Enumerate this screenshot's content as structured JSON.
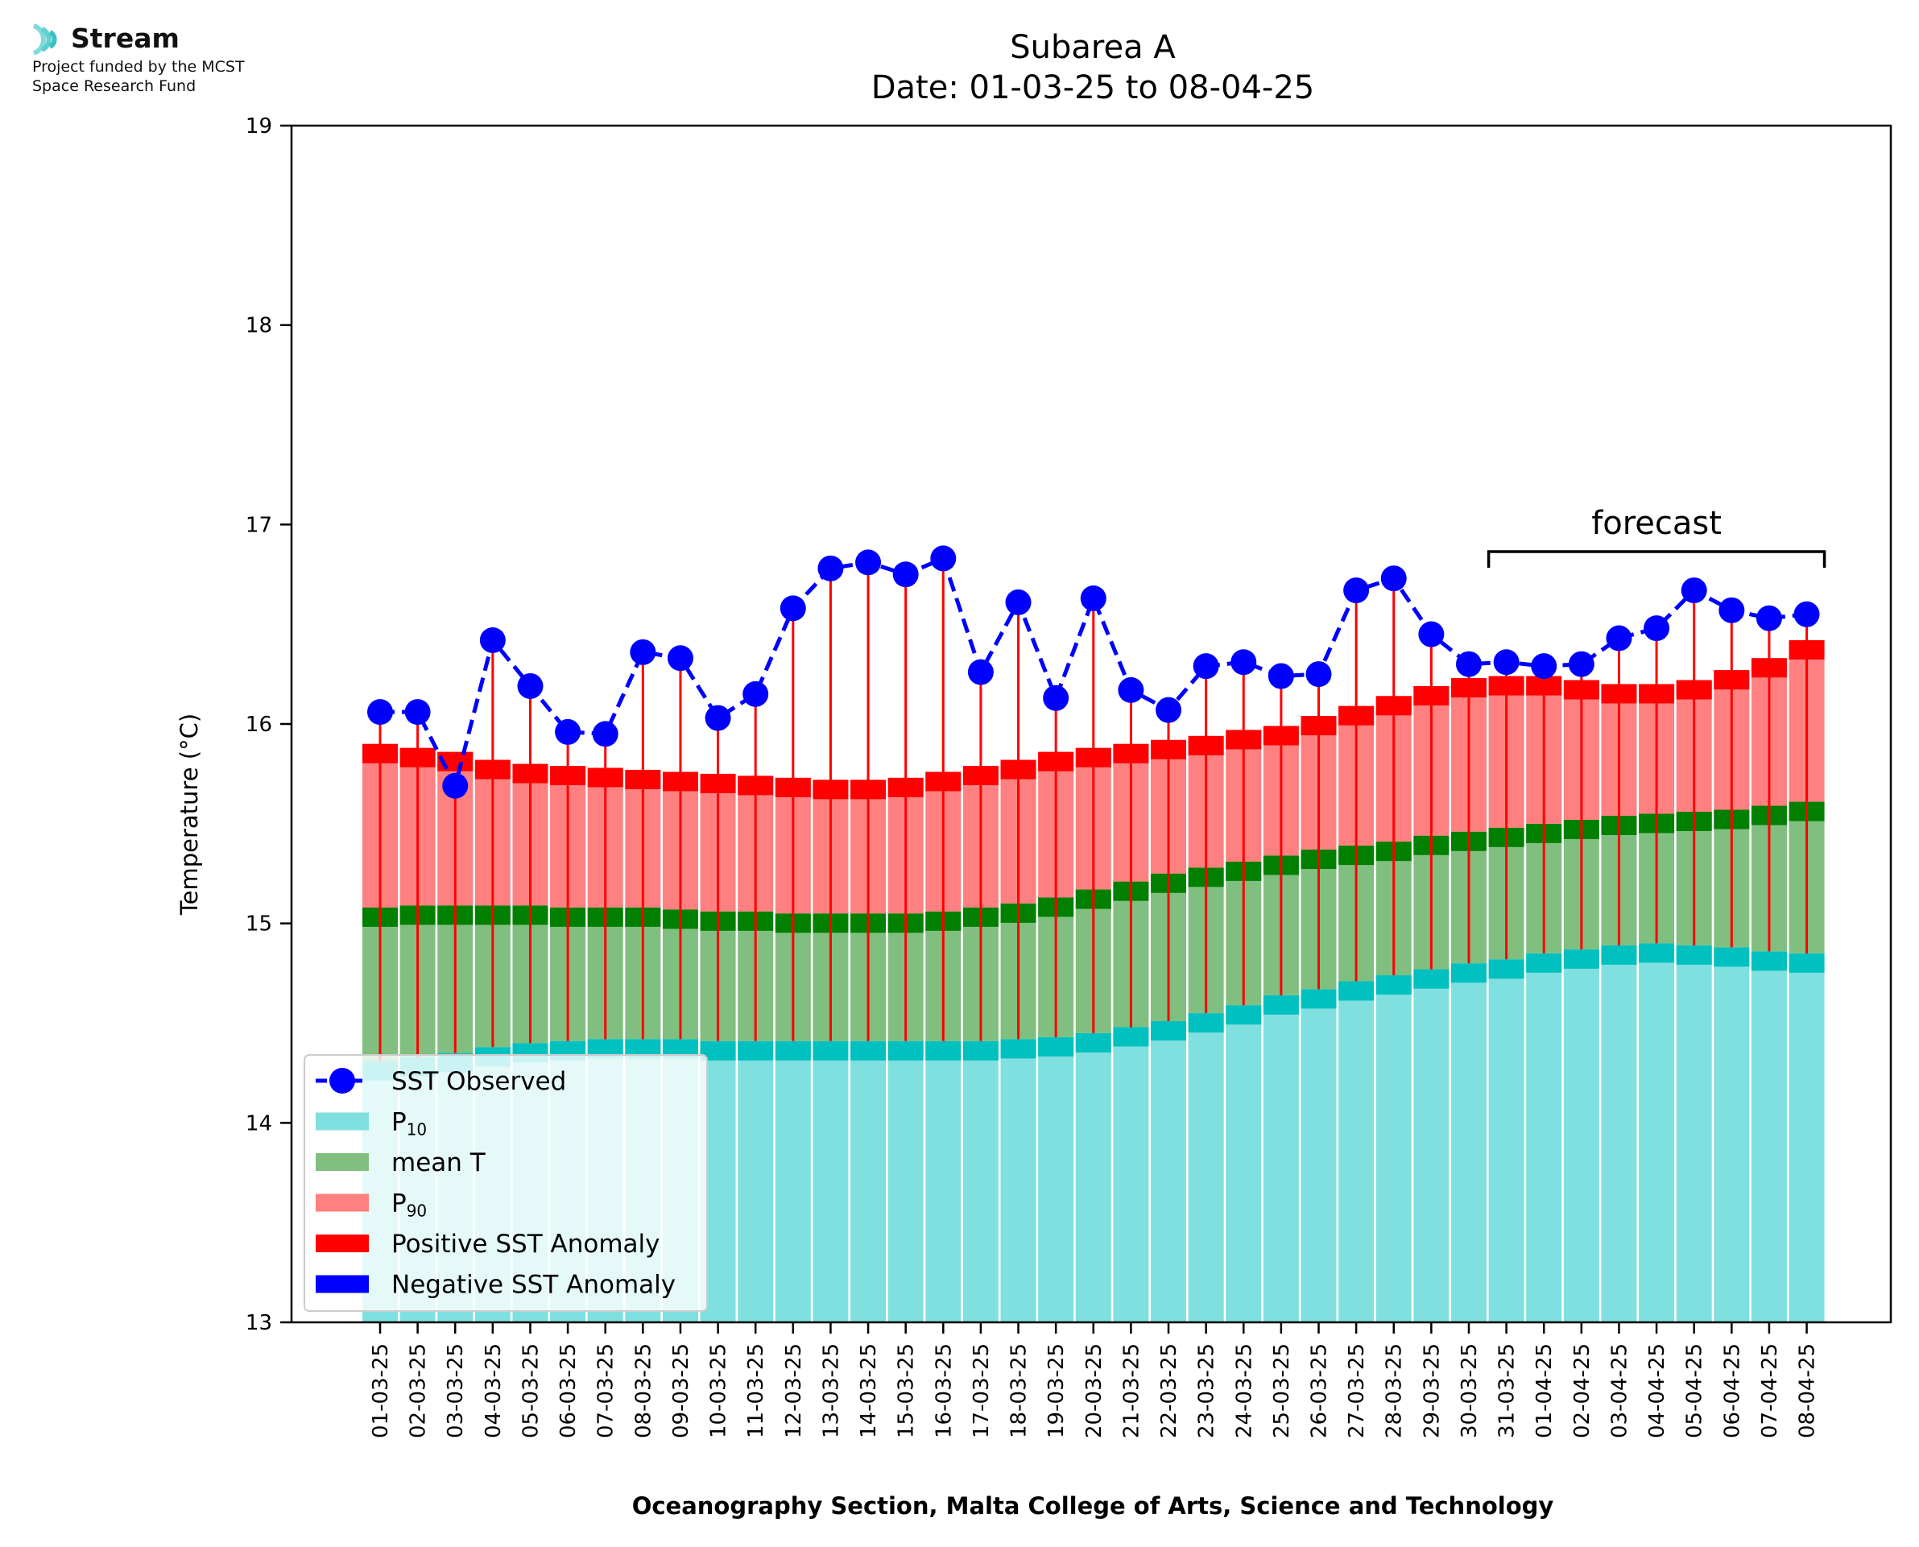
{
  "logo": {
    "name": "Stream",
    "line1": "Project funded by the MCST",
    "line2": "Space Research Fund"
  },
  "chart_data": {
    "type": "bar",
    "title": "Subarea A",
    "subtitle": "Date: 01-03-25 to 08-04-25",
    "ylabel": "Temperature (°C)",
    "xlabel": "Oceanography Section, Malta College of Arts, Science and Technology",
    "ylim": [
      13,
      19
    ],
    "yticks": [
      13,
      14,
      15,
      16,
      17,
      18,
      19
    ],
    "grid": false,
    "legend_position": "lower-left",
    "annotation": {
      "text": "forecast",
      "from": "31-03-25",
      "to": "08-04-25"
    },
    "colors": {
      "observed": "#0000ff",
      "p10": "#80dfdf",
      "p10_edge": "#00c0c0",
      "mean": "#80bf80",
      "mean_edge": "#007f00",
      "p90": "#ff8080",
      "p90_edge": "#ff0000",
      "positive_anomaly": "#ff0000",
      "negative_anomaly": "#0000ff"
    },
    "legend": [
      {
        "key": "observed",
        "label": "SST Observed"
      },
      {
        "key": "p10",
        "label": "P",
        "sub": "10"
      },
      {
        "key": "mean",
        "label": "mean T"
      },
      {
        "key": "p90",
        "label": "P",
        "sub": "90"
      },
      {
        "key": "positive_anomaly",
        "label": "Positive SST Anomaly"
      },
      {
        "key": "negative_anomaly",
        "label": "Negative SST Anomaly"
      }
    ],
    "categories": [
      "01-03-25",
      "02-03-25",
      "03-03-25",
      "04-03-25",
      "05-03-25",
      "06-03-25",
      "07-03-25",
      "08-03-25",
      "09-03-25",
      "10-03-25",
      "11-03-25",
      "12-03-25",
      "13-03-25",
      "14-03-25",
      "15-03-25",
      "16-03-25",
      "17-03-25",
      "18-03-25",
      "19-03-25",
      "20-03-25",
      "21-03-25",
      "22-03-25",
      "23-03-25",
      "24-03-25",
      "25-03-25",
      "26-03-25",
      "27-03-25",
      "28-03-25",
      "29-03-25",
      "30-03-25",
      "31-03-25",
      "01-04-25",
      "02-04-25",
      "03-04-25",
      "04-04-25",
      "05-04-25",
      "06-04-25",
      "07-04-25",
      "08-04-25"
    ],
    "series": [
      {
        "name": "SST Observed",
        "values": [
          16.06,
          16.06,
          15.69,
          16.42,
          16.19,
          15.96,
          15.95,
          16.36,
          16.33,
          16.03,
          16.15,
          16.58,
          16.78,
          16.81,
          16.75,
          16.83,
          16.26,
          16.61,
          16.13,
          16.63,
          16.17,
          16.07,
          16.29,
          16.31,
          16.24,
          16.25,
          16.67,
          16.73,
          16.45,
          16.3,
          16.31,
          16.29,
          16.3,
          16.43,
          16.48,
          16.67,
          16.57,
          16.53,
          16.55
        ]
      },
      {
        "name": "P10",
        "values": [
          14.31,
          14.33,
          14.35,
          14.38,
          14.4,
          14.41,
          14.42,
          14.42,
          14.42,
          14.41,
          14.41,
          14.41,
          14.41,
          14.41,
          14.41,
          14.41,
          14.41,
          14.42,
          14.43,
          14.45,
          14.48,
          14.51,
          14.55,
          14.59,
          14.64,
          14.67,
          14.71,
          14.74,
          14.77,
          14.8,
          14.82,
          14.85,
          14.87,
          14.89,
          14.9,
          14.89,
          14.88,
          14.86,
          14.85
        ]
      },
      {
        "name": "mean T",
        "values": [
          15.08,
          15.09,
          15.09,
          15.09,
          15.09,
          15.08,
          15.08,
          15.08,
          15.07,
          15.06,
          15.06,
          15.05,
          15.05,
          15.05,
          15.05,
          15.06,
          15.08,
          15.1,
          15.13,
          15.17,
          15.21,
          15.25,
          15.28,
          15.31,
          15.34,
          15.37,
          15.39,
          15.41,
          15.44,
          15.46,
          15.48,
          15.5,
          15.52,
          15.54,
          15.55,
          15.56,
          15.57,
          15.59,
          15.61
        ]
      },
      {
        "name": "P90",
        "values": [
          15.9,
          15.88,
          15.86,
          15.82,
          15.8,
          15.79,
          15.78,
          15.77,
          15.76,
          15.75,
          15.74,
          15.73,
          15.72,
          15.72,
          15.73,
          15.76,
          15.79,
          15.82,
          15.86,
          15.88,
          15.9,
          15.92,
          15.94,
          15.97,
          15.99,
          16.04,
          16.09,
          16.14,
          16.19,
          16.23,
          16.24,
          16.24,
          16.22,
          16.2,
          16.2,
          16.22,
          16.27,
          16.33,
          16.42
        ]
      }
    ]
  }
}
